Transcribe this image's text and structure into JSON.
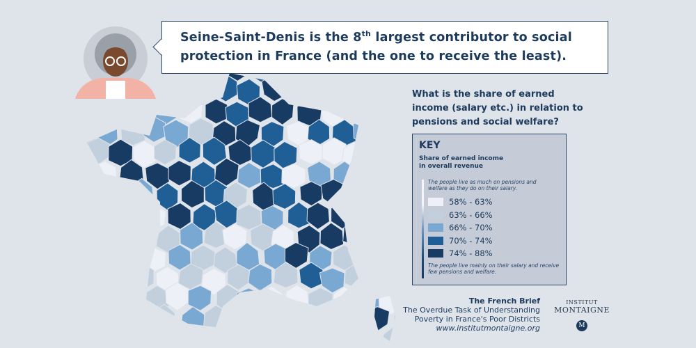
{
  "bubble": {
    "line1_pre": "Seine-Saint-Denis is the 8",
    "line1_sup": "th",
    "line1_post": " largest contributor to social",
    "line2": "protection in France (and the one to receive the least)."
  },
  "question": "What is the share of earned income (salary etc.) in relation to pensions and social welfare?",
  "key": {
    "title": "KEY",
    "subtitle_line1": "Share of earned income",
    "subtitle_line2": "in overall revenue",
    "top_note": "The people live as much on pensions and welfare as they do on their salary.",
    "bottom_note": "The people live mainly on their salary and receive few pensions and welfare.",
    "items": [
      {
        "label": "58% - 63%",
        "color": "#eef0f8"
      },
      {
        "label": "63% - 66%",
        "color": "#c2cfdc"
      },
      {
        "label": "66% - 70%",
        "color": "#79a8d2"
      },
      {
        "label": "70% - 74%",
        "color": "#1f5f96"
      },
      {
        "label": "74% - 88%",
        "color": "#173b63"
      }
    ]
  },
  "footer": {
    "title": "The French Brief",
    "line2": "The Overdue Task of Understanding",
    "line3": "Poverty in France's Poor Districts",
    "url": "www.institutmontaigne.org"
  },
  "logo": {
    "line1": "INSTITUT",
    "line2": "MONTAIGNE",
    "mark": "M"
  },
  "colors": {
    "background": "#dfe3ea",
    "border": "#2a4466"
  }
}
